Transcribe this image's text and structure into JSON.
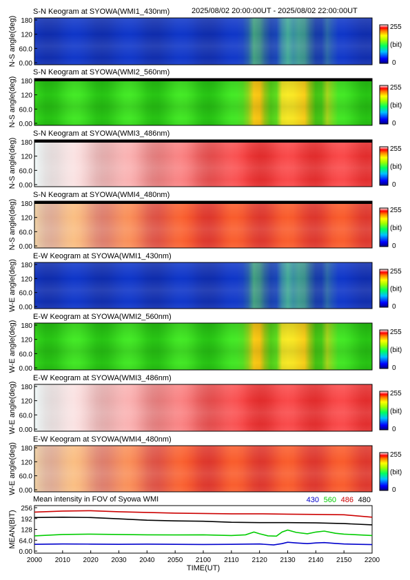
{
  "header": {
    "time_range": "2025/08/02 20:00:00UT - 2025/08/02 22:00:00UT"
  },
  "colors": {
    "series_430": "#0000cc",
    "series_560": "#00cc00",
    "series_486": "#cc0000",
    "series_480": "#000000"
  },
  "chart_data": [
    {
      "type": "heatmap",
      "title": "S-N Keogram at SYOWA(WMI1_430nm)",
      "ylabel": "N-S angle(deg)",
      "yticks": [
        "180",
        "120",
        "60.0",
        "0.00"
      ],
      "ylim": [
        0,
        180
      ],
      "colorbar": {
        "max": "255",
        "unit": "(bit)",
        "min": "0"
      },
      "scheme": "blue",
      "topband": false
    },
    {
      "type": "heatmap",
      "title": "S-N Keogram at SYOWA(WMI2_560nm)",
      "ylabel": "N-S angle(deg)",
      "yticks": [
        "180",
        "120",
        "60.0",
        "0.00"
      ],
      "ylim": [
        0,
        180
      ],
      "colorbar": {
        "max": "255",
        "unit": "(bit)",
        "min": "0"
      },
      "scheme": "green",
      "topband": true
    },
    {
      "type": "heatmap",
      "title": "S-N Keogram at SYOWA(WMI3_486nm)",
      "ylabel": "N-S angle(deg)",
      "yticks": [
        "180",
        "120",
        "60.0",
        "0.00"
      ],
      "ylim": [
        0,
        180
      ],
      "colorbar": {
        "max": "255",
        "unit": "(bit)",
        "min": "0"
      },
      "scheme": "red",
      "topband": true
    },
    {
      "type": "heatmap",
      "title": "S-N Keogram at SYOWA(WMI4_480nm)",
      "ylabel": "N-S angle(deg)",
      "yticks": [
        "180",
        "120",
        "60.0",
        "0.00"
      ],
      "ylim": [
        0,
        180
      ],
      "colorbar": {
        "max": "255",
        "unit": "(bit)",
        "min": "0"
      },
      "scheme": "red2",
      "topband": true
    },
    {
      "type": "heatmap",
      "title": "E-W Keogram at SYOWA(WMI1_430nm)",
      "ylabel": "W-E angle(deg)",
      "yticks": [
        "180",
        "120",
        "60.0",
        "0.00"
      ],
      "ylim": [
        0,
        180
      ],
      "colorbar": {
        "max": "255",
        "unit": "(bit)",
        "min": "0"
      },
      "scheme": "blue",
      "topband": false
    },
    {
      "type": "heatmap",
      "title": "E-W Keogram at SYOWA(WMI2_560nm)",
      "ylabel": "W-E angle(deg)",
      "yticks": [
        "180",
        "120",
        "60.0",
        "0.00"
      ],
      "ylim": [
        0,
        180
      ],
      "colorbar": {
        "max": "255",
        "unit": "(bit)",
        "min": "0"
      },
      "scheme": "green",
      "topband": false
    },
    {
      "type": "heatmap",
      "title": "E-W Keogram at SYOWA(WMI3_486nm)",
      "ylabel": "W-E angle(deg)",
      "yticks": [
        "180",
        "120",
        "60.0",
        "0.00"
      ],
      "ylim": [
        0,
        180
      ],
      "colorbar": {
        "max": "255",
        "unit": "(bit)",
        "min": "0"
      },
      "scheme": "red",
      "topband": false
    },
    {
      "type": "heatmap",
      "title": "E-W Keogram at SYOWA(WMI4_480nm)",
      "ylabel": "W-E angle(deg)",
      "yticks": [
        "180",
        "120",
        "60.0",
        "0.00"
      ],
      "ylim": [
        0,
        180
      ],
      "colorbar": {
        "max": "255",
        "unit": "(bit)",
        "min": "0"
      },
      "scheme": "red2",
      "topband": false
    },
    {
      "type": "line",
      "title": "Mean intensity in FOV of Syowa WMI",
      "xlabel": "TIME(UT)",
      "ylabel": "MEAN(BIT)",
      "ylim": [
        0,
        256
      ],
      "yticks": [
        "256",
        "192",
        "128",
        "64.0",
        "0.00"
      ],
      "xlim": [
        2000,
        2200
      ],
      "xticks": [
        "2000",
        "2010",
        "2020",
        "2030",
        "2040",
        "2050",
        "2100",
        "2110",
        "2120",
        "2130",
        "2140",
        "2150",
        "2200"
      ],
      "legend_position": "top-right",
      "series": [
        {
          "name": "430",
          "color": "#0000cc",
          "x": [
            2000,
            2010,
            2020,
            2030,
            2040,
            2050,
            2100,
            2110,
            2120,
            2125,
            2128,
            2130,
            2133,
            2137,
            2140,
            2143,
            2147,
            2150,
            2155,
            2200
          ],
          "values": [
            40,
            42,
            41,
            40,
            41,
            40,
            39,
            40,
            42,
            36,
            44,
            52,
            48,
            44,
            48,
            50,
            45,
            42,
            40,
            38
          ]
        },
        {
          "name": "560",
          "color": "#00cc00",
          "x": [
            2000,
            2010,
            2020,
            2030,
            2040,
            2050,
            2100,
            2105,
            2110,
            2115,
            2118,
            2120,
            2123,
            2126,
            2128,
            2130,
            2133,
            2137,
            2140,
            2143,
            2147,
            2150,
            2155,
            2200
          ],
          "values": [
            90,
            98,
            100,
            98,
            96,
            95,
            96,
            94,
            92,
            96,
            112,
            102,
            90,
            88,
            112,
            124,
            110,
            102,
            112,
            118,
            105,
            100,
            96,
            92
          ]
        },
        {
          "name": "486",
          "color": "#cc0000",
          "x": [
            2000,
            2010,
            2020,
            2030,
            2040,
            2050,
            2100,
            2110,
            2120,
            2130,
            2140,
            2150,
            2200
          ],
          "values": [
            230,
            236,
            238,
            232,
            228,
            224,
            222,
            220,
            220,
            218,
            216,
            214,
            200
          ]
        },
        {
          "name": "480",
          "color": "#000000",
          "x": [
            2000,
            2010,
            2020,
            2030,
            2040,
            2050,
            2100,
            2110,
            2120,
            2130,
            2140,
            2150,
            2200
          ],
          "values": [
            198,
            200,
            198,
            190,
            182,
            178,
            176,
            170,
            168,
            168,
            166,
            162,
            155
          ]
        }
      ]
    }
  ]
}
